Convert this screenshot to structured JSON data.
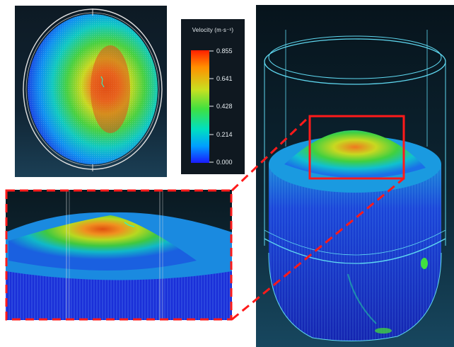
{
  "legend": {
    "title": "Velocity (m·s⁻¹)",
    "ticks": [
      "0.855",
      "0.641",
      "0.428",
      "0.214",
      "0.000"
    ],
    "min": 0.0,
    "max": 0.855,
    "colors": [
      "#1a1aff",
      "#00a0ff",
      "#00e0c0",
      "#40e040",
      "#c8e020",
      "#ff9000",
      "#ff2000"
    ]
  },
  "colors": {
    "highlight_box": "#ff1a1a",
    "wireframe": "#5fd8f0",
    "mesh_dark_blue": "#1a2fd8",
    "mesh_hot": "#e05a10"
  }
}
